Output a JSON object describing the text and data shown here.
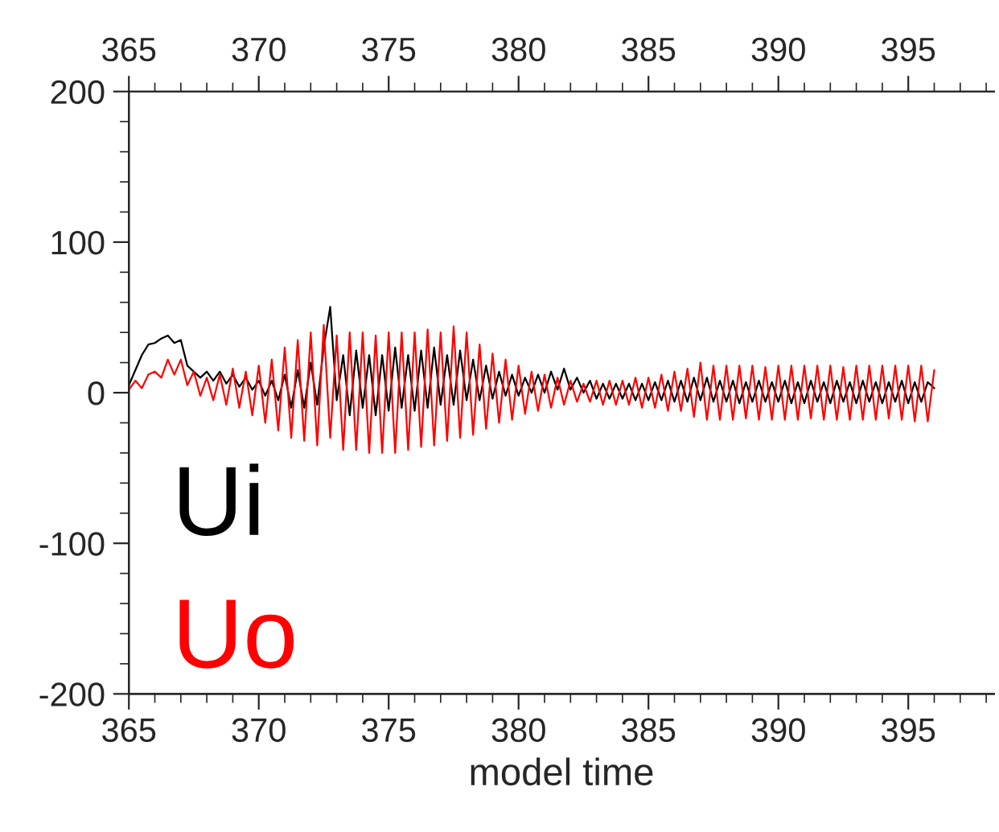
{
  "chart_data": {
    "type": "line",
    "xlabel": "model time",
    "x": [
      365,
      365.25,
      365.5,
      365.75,
      366,
      366.25,
      366.5,
      366.75,
      367,
      367.25,
      367.5,
      367.75,
      368,
      368.25,
      368.5,
      368.75,
      369,
      369.25,
      369.5,
      369.75,
      370,
      370.25,
      370.5,
      370.75,
      371,
      371.25,
      371.5,
      371.75,
      372,
      372.25,
      372.5,
      372.75,
      373,
      373.25,
      373.5,
      373.75,
      374,
      374.25,
      374.5,
      374.75,
      375,
      375.25,
      375.5,
      375.75,
      376,
      376.25,
      376.5,
      376.75,
      377,
      377.25,
      377.5,
      377.75,
      378,
      378.25,
      378.5,
      378.75,
      379,
      379.25,
      379.5,
      379.75,
      380,
      380.25,
      380.5,
      380.75,
      381,
      381.25,
      381.5,
      381.75,
      382,
      382.25,
      382.5,
      382.75,
      383,
      383.25,
      383.5,
      383.75,
      384,
      384.25,
      384.5,
      384.75,
      385,
      385.25,
      385.5,
      385.75,
      386,
      386.25,
      386.5,
      386.75,
      387,
      387.25,
      387.5,
      387.75,
      388,
      388.25,
      388.5,
      388.75,
      389,
      389.25,
      389.5,
      389.75,
      390,
      390.25,
      390.5,
      390.75,
      391,
      391.25,
      391.5,
      391.75,
      392,
      392.25,
      392.5,
      392.75,
      393,
      393.25,
      393.5,
      393.75,
      394,
      394.25,
      394.5,
      394.75,
      395,
      395.25,
      395.5,
      395.75,
      396
    ],
    "series": [
      {
        "name": "Ui",
        "color": "#000000",
        "values": [
          5,
          15,
          25,
          32,
          33,
          36,
          38,
          33,
          35,
          18,
          14,
          10,
          14,
          8,
          14,
          6,
          12,
          4,
          10,
          2,
          8,
          -2,
          8,
          -5,
          12,
          -10,
          15,
          -10,
          20,
          -8,
          30,
          57,
          -5,
          25,
          -15,
          28,
          -10,
          25,
          -15,
          25,
          -12,
          30,
          -10,
          25,
          -12,
          28,
          -10,
          30,
          -8,
          25,
          -8,
          28,
          -5,
          22,
          -5,
          18,
          -4,
          14,
          -2,
          12,
          -2,
          10,
          0,
          12,
          0,
          14,
          2,
          16,
          2,
          10,
          0,
          8,
          -4,
          6,
          -4,
          6,
          -4,
          6,
          -5,
          6,
          -5,
          7,
          -5,
          8,
          -6,
          8,
          -6,
          10,
          -5,
          10,
          -6,
          8,
          -6,
          8,
          -7,
          7,
          -6,
          8,
          -6,
          7,
          -6,
          8,
          -7,
          7,
          -7,
          8,
          -6,
          7,
          -7,
          8,
          -6,
          7,
          -7,
          8,
          -6,
          7,
          -7,
          7,
          -6,
          8,
          -7,
          7,
          -6,
          7,
          3
        ]
      },
      {
        "name": "Uo",
        "color": "#ff0000",
        "values": [
          2,
          8,
          3,
          12,
          14,
          10,
          22,
          12,
          22,
          5,
          14,
          -2,
          10,
          -5,
          12,
          -8,
          16,
          -10,
          14,
          -15,
          18,
          -20,
          22,
          -25,
          30,
          -30,
          35,
          -32,
          40,
          -35,
          45,
          -30,
          38,
          -38,
          40,
          -38,
          40,
          -40,
          38,
          -40,
          40,
          -40,
          40,
          -38,
          40,
          -36,
          42,
          -35,
          40,
          -32,
          44,
          -30,
          40,
          -28,
          32,
          -24,
          26,
          -20,
          22,
          -18,
          18,
          -14,
          14,
          -12,
          12,
          -10,
          10,
          -8,
          8,
          -6,
          6,
          -6,
          8,
          -8,
          8,
          -8,
          8,
          -8,
          10,
          -10,
          10,
          -10,
          12,
          -12,
          14,
          -12,
          16,
          -16,
          20,
          -18,
          18,
          -18,
          18,
          -18,
          18,
          -17,
          18,
          -18,
          17,
          -18,
          18,
          -18,
          18,
          -18,
          18,
          -17,
          18,
          -18,
          18,
          -18,
          17,
          -18,
          18,
          -18,
          18,
          -18,
          18,
          -17,
          18,
          -18,
          18,
          -19,
          18,
          -19,
          15
        ]
      }
    ],
    "xlim": [
      365,
      398.3
    ],
    "xticks": [
      365,
      370,
      375,
      380,
      385,
      390,
      395
    ],
    "x2lim": [
      365,
      398.3
    ],
    "x2ticks": [
      365,
      370,
      375,
      380,
      385,
      390,
      395
    ],
    "ylim": [
      -200,
      200
    ],
    "yticks": [
      -200,
      -100,
      0,
      100,
      200
    ],
    "legend": "bottom left",
    "grid": false
  }
}
